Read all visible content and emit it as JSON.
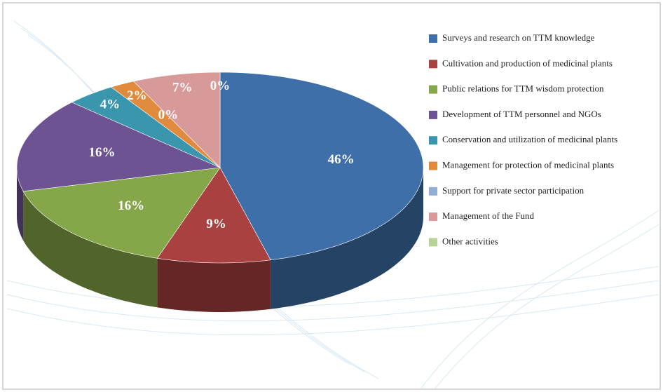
{
  "chart_data": {
    "type": "pie3d",
    "categories": [
      "Surveys and research on TTM knowledge",
      "Cultivation and production of medicinal plants",
      "Public relations for TTM wisdom protection",
      "Development of TTM personnel and NGOs",
      "Conservation and utilization of medicinal plants",
      "Management for protection of medicinal plants",
      "Support for private sector participation",
      "Management of the Fund",
      "Other activities"
    ],
    "values": [
      46,
      9,
      16,
      16,
      4,
      2,
      0,
      7,
      0
    ],
    "value_labels": [
      "46%",
      "9%",
      "16%",
      "16%",
      "4%",
      "2%",
      "0%",
      "7%",
      "0%"
    ],
    "colors": [
      "#3e6fa8",
      "#a8413f",
      "#86a64a",
      "#6e5393",
      "#3a96ad",
      "#df8a3c",
      "#93aed4",
      "#d79a98",
      "#b8d39a"
    ],
    "legend": "right"
  }
}
